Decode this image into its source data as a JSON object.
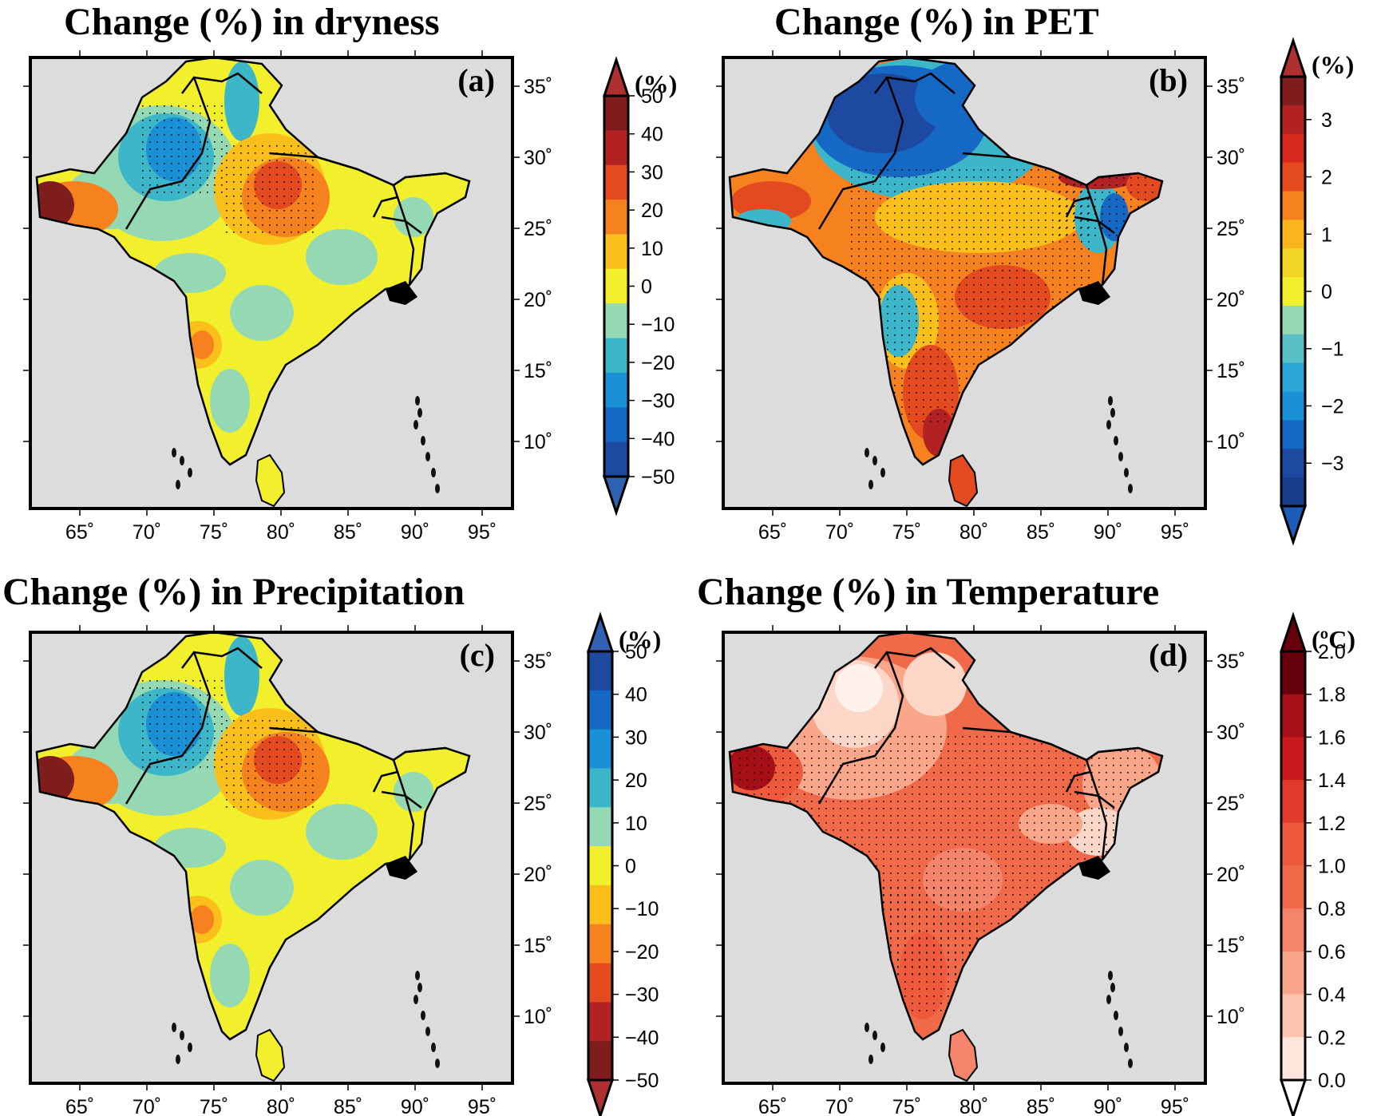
{
  "panels": [
    {
      "title": "Change (%) in dryness",
      "letter": "(a)",
      "unit": "(%)",
      "cbar_labels": [
        "50",
        "40",
        "30",
        "20",
        "10",
        "0",
        "−10",
        "−20",
        "−30",
        "−40",
        "−50"
      ],
      "cbar_colors": [
        "#7f1d1d",
        "#b22222",
        "#e34a1f",
        "#f5821f",
        "#fbbf1c",
        "#f2ef2d",
        "#95d9b4",
        "#3cb6c8",
        "#1a90d6",
        "#1569c5",
        "#1d4aa0"
      ],
      "arrow_top": "#b03030",
      "arrow_bottom": "#2f62b0",
      "land": {
        "a": "#f2ef2d",
        "b": "#95d9b4",
        "c": "#3cb6c8",
        "d": "#1a90d6",
        "e": "#f5821f",
        "f": "#e34a1f",
        "g": "#fbbf1c",
        "h": "#7f1d1d"
      }
    },
    {
      "title": "Change (%) in PET",
      "letter": "(b)",
      "unit": "(%)",
      "cbar_labels": [
        "3",
        "2",
        "1",
        "0",
        "−1",
        "−2",
        "−3"
      ],
      "cbar_colors": [
        "#7f1d1d",
        "#b22222",
        "#d9291f",
        "#e64a1f",
        "#f5821f",
        "#fbb41c",
        "#f2d625",
        "#f2ef2d",
        "#95d9b4",
        "#5ac0c8",
        "#2aa6d6",
        "#1a90d6",
        "#1569c5",
        "#1d4aa0",
        "#173d8c"
      ],
      "arrow_top": "#b03030",
      "arrow_bottom": "#1e5cb8",
      "land": {
        "a": "#f5821f",
        "b": "#fbbf1c",
        "c": "#1d4aa0",
        "d": "#1569c5",
        "e": "#e34a1f",
        "f": "#b22222",
        "g": "#3cb6c8",
        "h": "#f2ef2d"
      }
    },
    {
      "title": "Change (%) in Precipitation",
      "letter": "(c)",
      "unit": "(%)",
      "cbar_labels": [
        "50",
        "40",
        "30",
        "20",
        "10",
        "0",
        "−10",
        "−20",
        "−30",
        "−40",
        "−50"
      ],
      "cbar_colors": [
        "#1d4aa0",
        "#1569c5",
        "#1a90d6",
        "#3cb6c8",
        "#95d9b4",
        "#f2ef2d",
        "#fbbf1c",
        "#f5821f",
        "#e34a1f",
        "#b22222",
        "#7f1d1d"
      ],
      "arrow_top": "#2f62b0",
      "arrow_bottom": "#b03030",
      "land": {
        "a": "#f2ef2d",
        "b": "#95d9b4",
        "c": "#3cb6c8",
        "d": "#1a90d6",
        "e": "#f5821f",
        "f": "#e34a1f",
        "g": "#fbbf1c",
        "h": "#7f1d1d"
      }
    },
    {
      "title": "Change (%) in Temperature",
      "letter": "(d)",
      "unit": "(ºC)",
      "cbar_labels": [
        "2.0",
        "1.8",
        "1.6",
        "1.4",
        "1.2",
        "1.0",
        "0.8",
        "0.6",
        "0.4",
        "0.2",
        "0.0"
      ],
      "cbar_colors": [
        "#67000d",
        "#a50f15",
        "#cb181d",
        "#e03b2c",
        "#ef5a3d",
        "#f06a4a",
        "#f4846a",
        "#f9a68b",
        "#fcc5b2",
        "#fee6dc"
      ],
      "arrow_top": "#67000d",
      "arrow_bottom": "#ffffff",
      "land": {
        "a": "#f06a4a",
        "b": "#f4846a",
        "c": "#fcd6c6",
        "d": "#fff2ec",
        "e": "#ef5a3d",
        "f": "#e03b2c",
        "g": "#f9a68b",
        "h": "#a50f15"
      }
    }
  ],
  "lon_ticks": [
    "65˚",
    "70˚",
    "75˚",
    "80˚",
    "85˚",
    "90˚",
    "95˚"
  ],
  "lat_ticks": [
    "35˚",
    "30˚",
    "25˚",
    "20˚",
    "15˚",
    "10˚"
  ],
  "colors": {
    "ocean": "#dcdcdc",
    "border": "#000000"
  }
}
